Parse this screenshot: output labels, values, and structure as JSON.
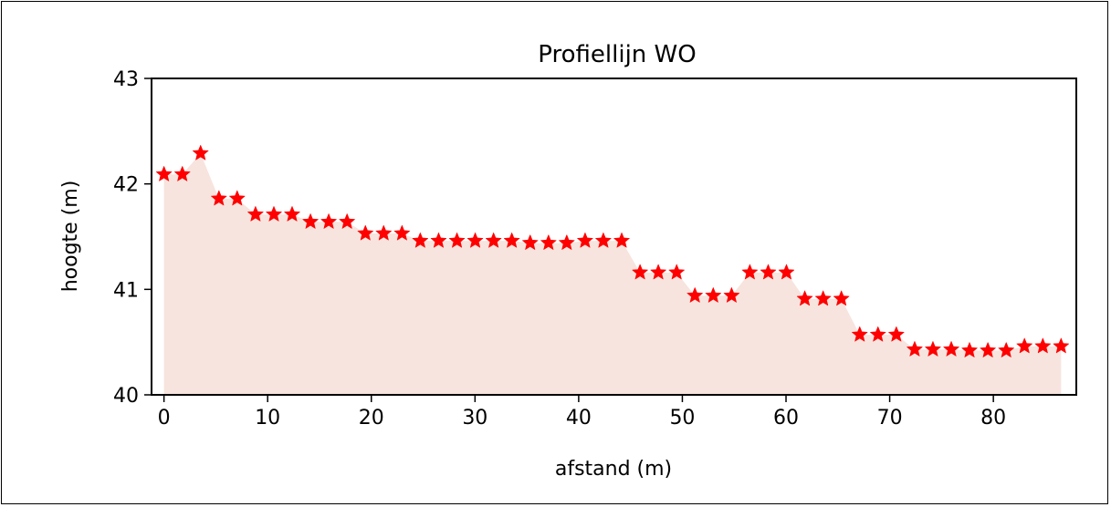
{
  "chart_data": {
    "type": "area",
    "title": "Profiellijn  WO",
    "xlabel": "afstand (m)",
    "ylabel": "hoogte (m)",
    "xlim": [
      -1.2,
      88.0
    ],
    "ylim": [
      40,
      43
    ],
    "xticks": [
      0,
      10,
      20,
      30,
      40,
      50,
      60,
      70,
      80
    ],
    "yticks": [
      40,
      41,
      42,
      43
    ],
    "grid": false,
    "colors": {
      "marker": "#ff0000",
      "fill": "#f7e4de",
      "axis": "#000000"
    },
    "marker": "star",
    "series": [
      {
        "x": [
          0,
          1.77,
          3.53,
          5.3,
          7.06,
          8.83,
          10.6,
          12.36,
          14.13,
          15.89,
          17.66,
          19.43,
          21.19,
          22.96,
          24.72,
          26.49,
          28.26,
          30.02,
          31.79,
          33.55,
          35.32,
          37.09,
          38.85,
          40.62,
          42.38,
          44.15,
          45.92,
          47.68,
          49.45,
          51.21,
          52.98,
          54.75,
          56.51,
          58.28,
          60.04,
          61.81,
          63.58,
          65.34,
          67.11,
          68.87,
          70.64,
          72.41,
          74.17,
          75.94,
          77.7,
          79.47,
          81.24,
          83.0,
          84.77,
          86.53
        ],
        "y": [
          42.09,
          42.09,
          42.29,
          41.86,
          41.86,
          41.71,
          41.71,
          41.71,
          41.64,
          41.64,
          41.64,
          41.53,
          41.53,
          41.53,
          41.46,
          41.46,
          41.46,
          41.46,
          41.46,
          41.46,
          41.44,
          41.44,
          41.44,
          41.46,
          41.46,
          41.46,
          41.16,
          41.16,
          41.16,
          40.94,
          40.94,
          40.94,
          41.16,
          41.16,
          41.16,
          40.91,
          40.91,
          40.91,
          40.57,
          40.57,
          40.57,
          40.43,
          40.43,
          40.43,
          40.42,
          40.42,
          40.42,
          40.46,
          40.46,
          40.46
        ]
      }
    ]
  }
}
